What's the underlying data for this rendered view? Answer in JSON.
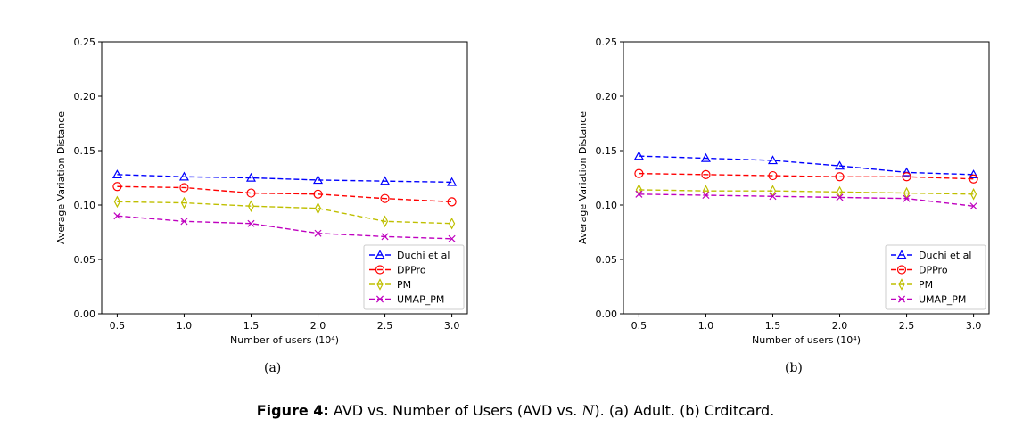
{
  "chart_data": [
    {
      "type": "line",
      "subfig_label": "(a)",
      "xlabel": "Number of users (10⁴)",
      "ylabel": "Average Variation Distance",
      "xlim": [
        0.5,
        3.0
      ],
      "ylim": [
        0,
        0.25
      ],
      "xticks": [
        "0.5",
        "1.0",
        "1.5",
        "2.0",
        "2.5",
        "3.0"
      ],
      "yticks": [
        "0.00",
        "0.05",
        "0.10",
        "0.15",
        "0.20",
        "0.25"
      ],
      "x": [
        0.5,
        1.0,
        1.5,
        2.0,
        2.5,
        3.0
      ],
      "legend_position": "lower-right",
      "grid": false,
      "series": [
        {
          "name": "Duchi et al",
          "color": "#0000ff",
          "marker": "triangle",
          "values": [
            0.128,
            0.126,
            0.125,
            0.123,
            0.122,
            0.121
          ]
        },
        {
          "name": "DPPro",
          "color": "#ff0000",
          "marker": "circle",
          "values": [
            0.117,
            0.116,
            0.111,
            0.11,
            0.106,
            0.103
          ]
        },
        {
          "name": "PM",
          "color": "#bfbf00",
          "marker": "diamond",
          "values": [
            0.103,
            0.102,
            0.099,
            0.097,
            0.085,
            0.083
          ]
        },
        {
          "name": "UMAP_PM",
          "color": "#bf00bf",
          "marker": "x",
          "values": [
            0.09,
            0.085,
            0.083,
            0.074,
            0.071,
            0.069
          ]
        }
      ]
    },
    {
      "type": "line",
      "subfig_label": "(b)",
      "xlabel": "Number of users (10⁴)",
      "ylabel": "Average Variation Distance",
      "xlim": [
        0.5,
        3.0
      ],
      "ylim": [
        0,
        0.25
      ],
      "xticks": [
        "0.5",
        "1.0",
        "1.5",
        "2.0",
        "2.5",
        "3.0"
      ],
      "yticks": [
        "0.00",
        "0.05",
        "0.10",
        "0.15",
        "0.20",
        "0.25"
      ],
      "x": [
        0.5,
        1.0,
        1.5,
        2.0,
        2.5,
        3.0
      ],
      "legend_position": "lower-right",
      "grid": false,
      "series": [
        {
          "name": "Duchi et al",
          "color": "#0000ff",
          "marker": "triangle",
          "values": [
            0.145,
            0.143,
            0.141,
            0.136,
            0.13,
            0.128
          ]
        },
        {
          "name": "DPPro",
          "color": "#ff0000",
          "marker": "circle",
          "values": [
            0.129,
            0.128,
            0.127,
            0.126,
            0.126,
            0.124
          ]
        },
        {
          "name": "PM",
          "color": "#bfbf00",
          "marker": "diamond",
          "values": [
            0.114,
            0.113,
            0.113,
            0.112,
            0.111,
            0.11
          ]
        },
        {
          "name": "UMAP_PM",
          "color": "#bf00bf",
          "marker": "x",
          "values": [
            0.11,
            0.109,
            0.108,
            0.107,
            0.106,
            0.099
          ]
        }
      ]
    }
  ],
  "caption": {
    "label": "Figure 4:",
    "text_before": "AVD vs. Number of Users (AVD vs.",
    "math": "N",
    "text_after": "). (a) Adult. (b) Crditcard."
  }
}
